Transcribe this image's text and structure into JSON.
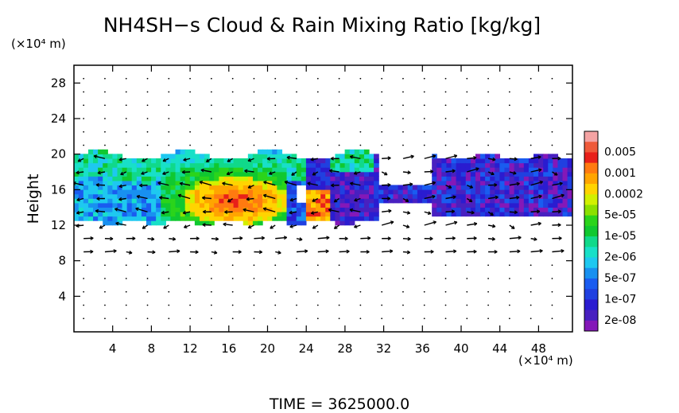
{
  "chart_data": {
    "type": "heatmap",
    "title": "NH4SH−s Cloud & Rain Mixing Ratio [kg/kg]",
    "y_unit": "(×10⁴ m)",
    "x_unit": "(×10⁴ m)",
    "ylabel": "Height",
    "xlabel": "",
    "xlim": [
      0,
      51.5
    ],
    "ylim": [
      0,
      30
    ],
    "x_ticks": [
      "4",
      "8",
      "12",
      "16",
      "20",
      "24",
      "28",
      "32",
      "36",
      "40",
      "44",
      "48"
    ],
    "y_ticks": [
      "4",
      "8",
      "12",
      "16",
      "20",
      "24",
      "28"
    ],
    "colorbar": {
      "labels": [
        "0.005",
        "0.001",
        "0.0002",
        "5e-05",
        "1e-05",
        "2e-06",
        "5e-07",
        "1e-07",
        "2e-08"
      ],
      "colors": [
        "#f4a3a3",
        "#ef5a3a",
        "#e8201a",
        "#ff7a10",
        "#ffa500",
        "#ffd400",
        "#d2f000",
        "#8be000",
        "#2bd41b",
        "#10c830",
        "#10d98a",
        "#18e0c8",
        "#1ec8f0",
        "#1890f0",
        "#1a5cf0",
        "#2040e0",
        "#2a1cd0",
        "#4820c0",
        "#8418b8"
      ]
    },
    "regions": [
      {
        "level": 2,
        "x": [
          -1,
          51.5
        ],
        "y": [
          12.5,
          19.5
        ]
      },
      {
        "level": 1,
        "x": [
          0,
          22
        ],
        "y": [
          12.6,
          16.5
        ]
      },
      {
        "level": 0,
        "x": [
          25,
          31
        ],
        "y": [
          12.8,
          15.5
        ]
      }
    ],
    "annotations": [
      "vector field overlay (wind)"
    ],
    "time_label": "TIME  =  3625000.0"
  }
}
